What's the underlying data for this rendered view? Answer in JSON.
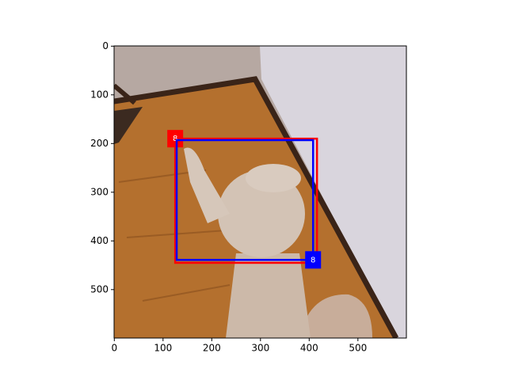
{
  "chart_data": {
    "type": "image",
    "xlim": [
      -0.5,
      599.5
    ],
    "ylim": [
      599.5,
      -0.5
    ],
    "xticks": [
      0,
      100,
      200,
      300,
      400,
      500
    ],
    "yticks": [
      0,
      100,
      200,
      300,
      400,
      500
    ],
    "boxes": [
      {
        "label": "8",
        "color": "#ff0000",
        "x1": 125,
        "y1": 190,
        "x2": 416,
        "y2": 445,
        "label_corner": "top-left"
      },
      {
        "label": "8",
        "color": "#0000ff",
        "x1": 128,
        "y1": 193,
        "x2": 408,
        "y2": 439,
        "label_corner": "bottom-right"
      }
    ]
  }
}
